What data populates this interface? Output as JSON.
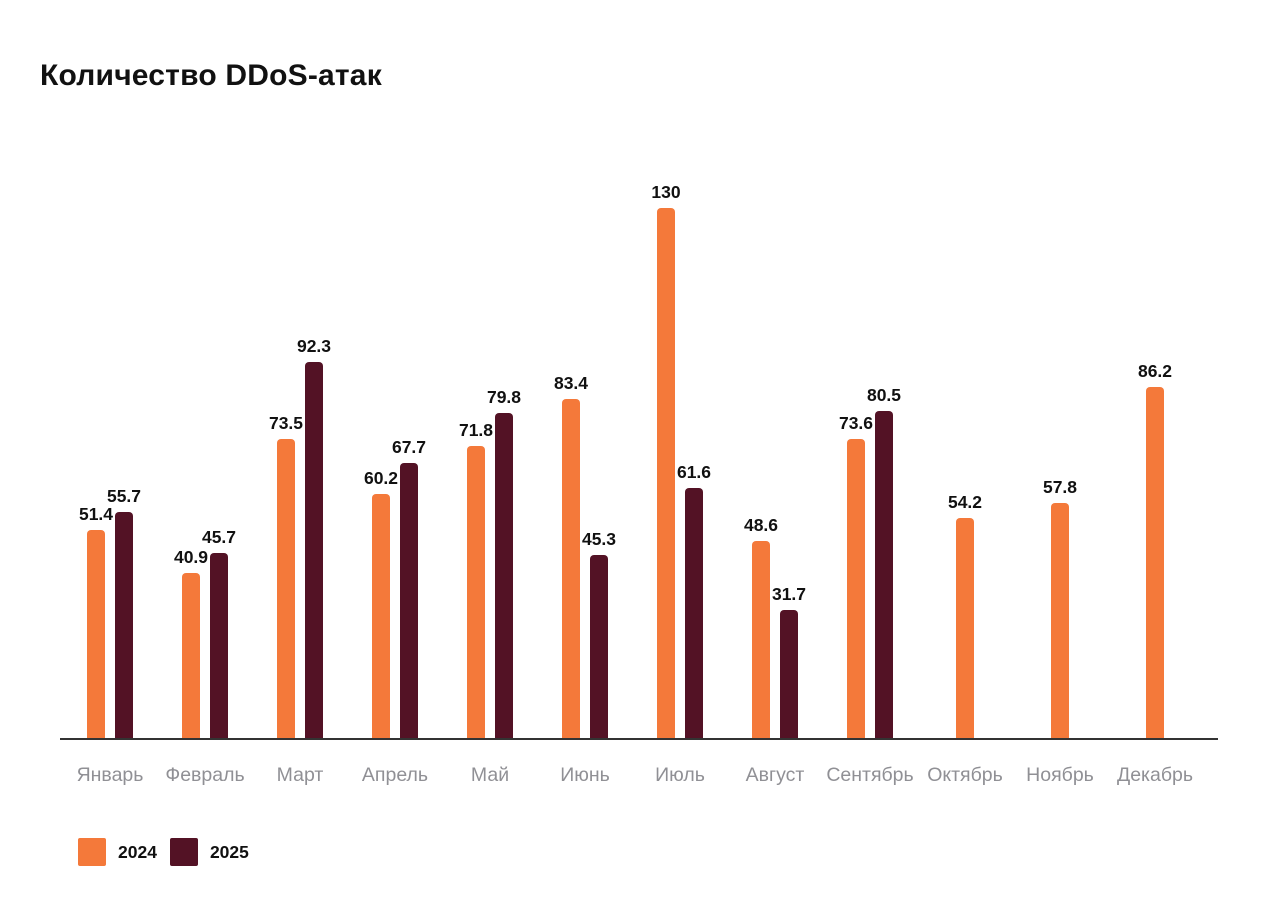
{
  "title": "Количество DDoS-атак",
  "colors": {
    "background": "#FFFFFF",
    "bar_2024": "#F4793A",
    "bar_2025": "#531225",
    "axis_line": "#333333",
    "month_label": "#909095",
    "value_label": "#111111",
    "title": "#111111"
  },
  "legend": {
    "position": "bottom-left",
    "items": [
      {
        "label": "2024",
        "color": "#F4793A"
      },
      {
        "label": "2025",
        "color": "#531225"
      }
    ]
  },
  "chart_data": {
    "type": "bar",
    "title": "Количество DDoS-атак",
    "xlabel": "",
    "ylabel": "",
    "grid": false,
    "y_axis_visible": false,
    "ylim": [
      0,
      130
    ],
    "legend_position": "bottom-left",
    "categories": [
      "Январь",
      "Февраль",
      "Март",
      "Апрель",
      "Май",
      "Июнь",
      "Июль",
      "Август",
      "Сентябрь",
      "Октябрь",
      "Ноябрь",
      "Декабрь"
    ],
    "series": [
      {
        "name": "2024",
        "color": "#F4793A",
        "values": [
          51.4,
          40.9,
          73.5,
          60.2,
          71.8,
          83.4,
          130,
          48.6,
          73.6,
          54.2,
          57.8,
          86.2
        ]
      },
      {
        "name": "2025",
        "color": "#531225",
        "values": [
          55.7,
          45.7,
          92.3,
          67.7,
          79.8,
          45.3,
          61.6,
          31.7,
          80.5,
          null,
          null,
          null
        ]
      }
    ]
  }
}
